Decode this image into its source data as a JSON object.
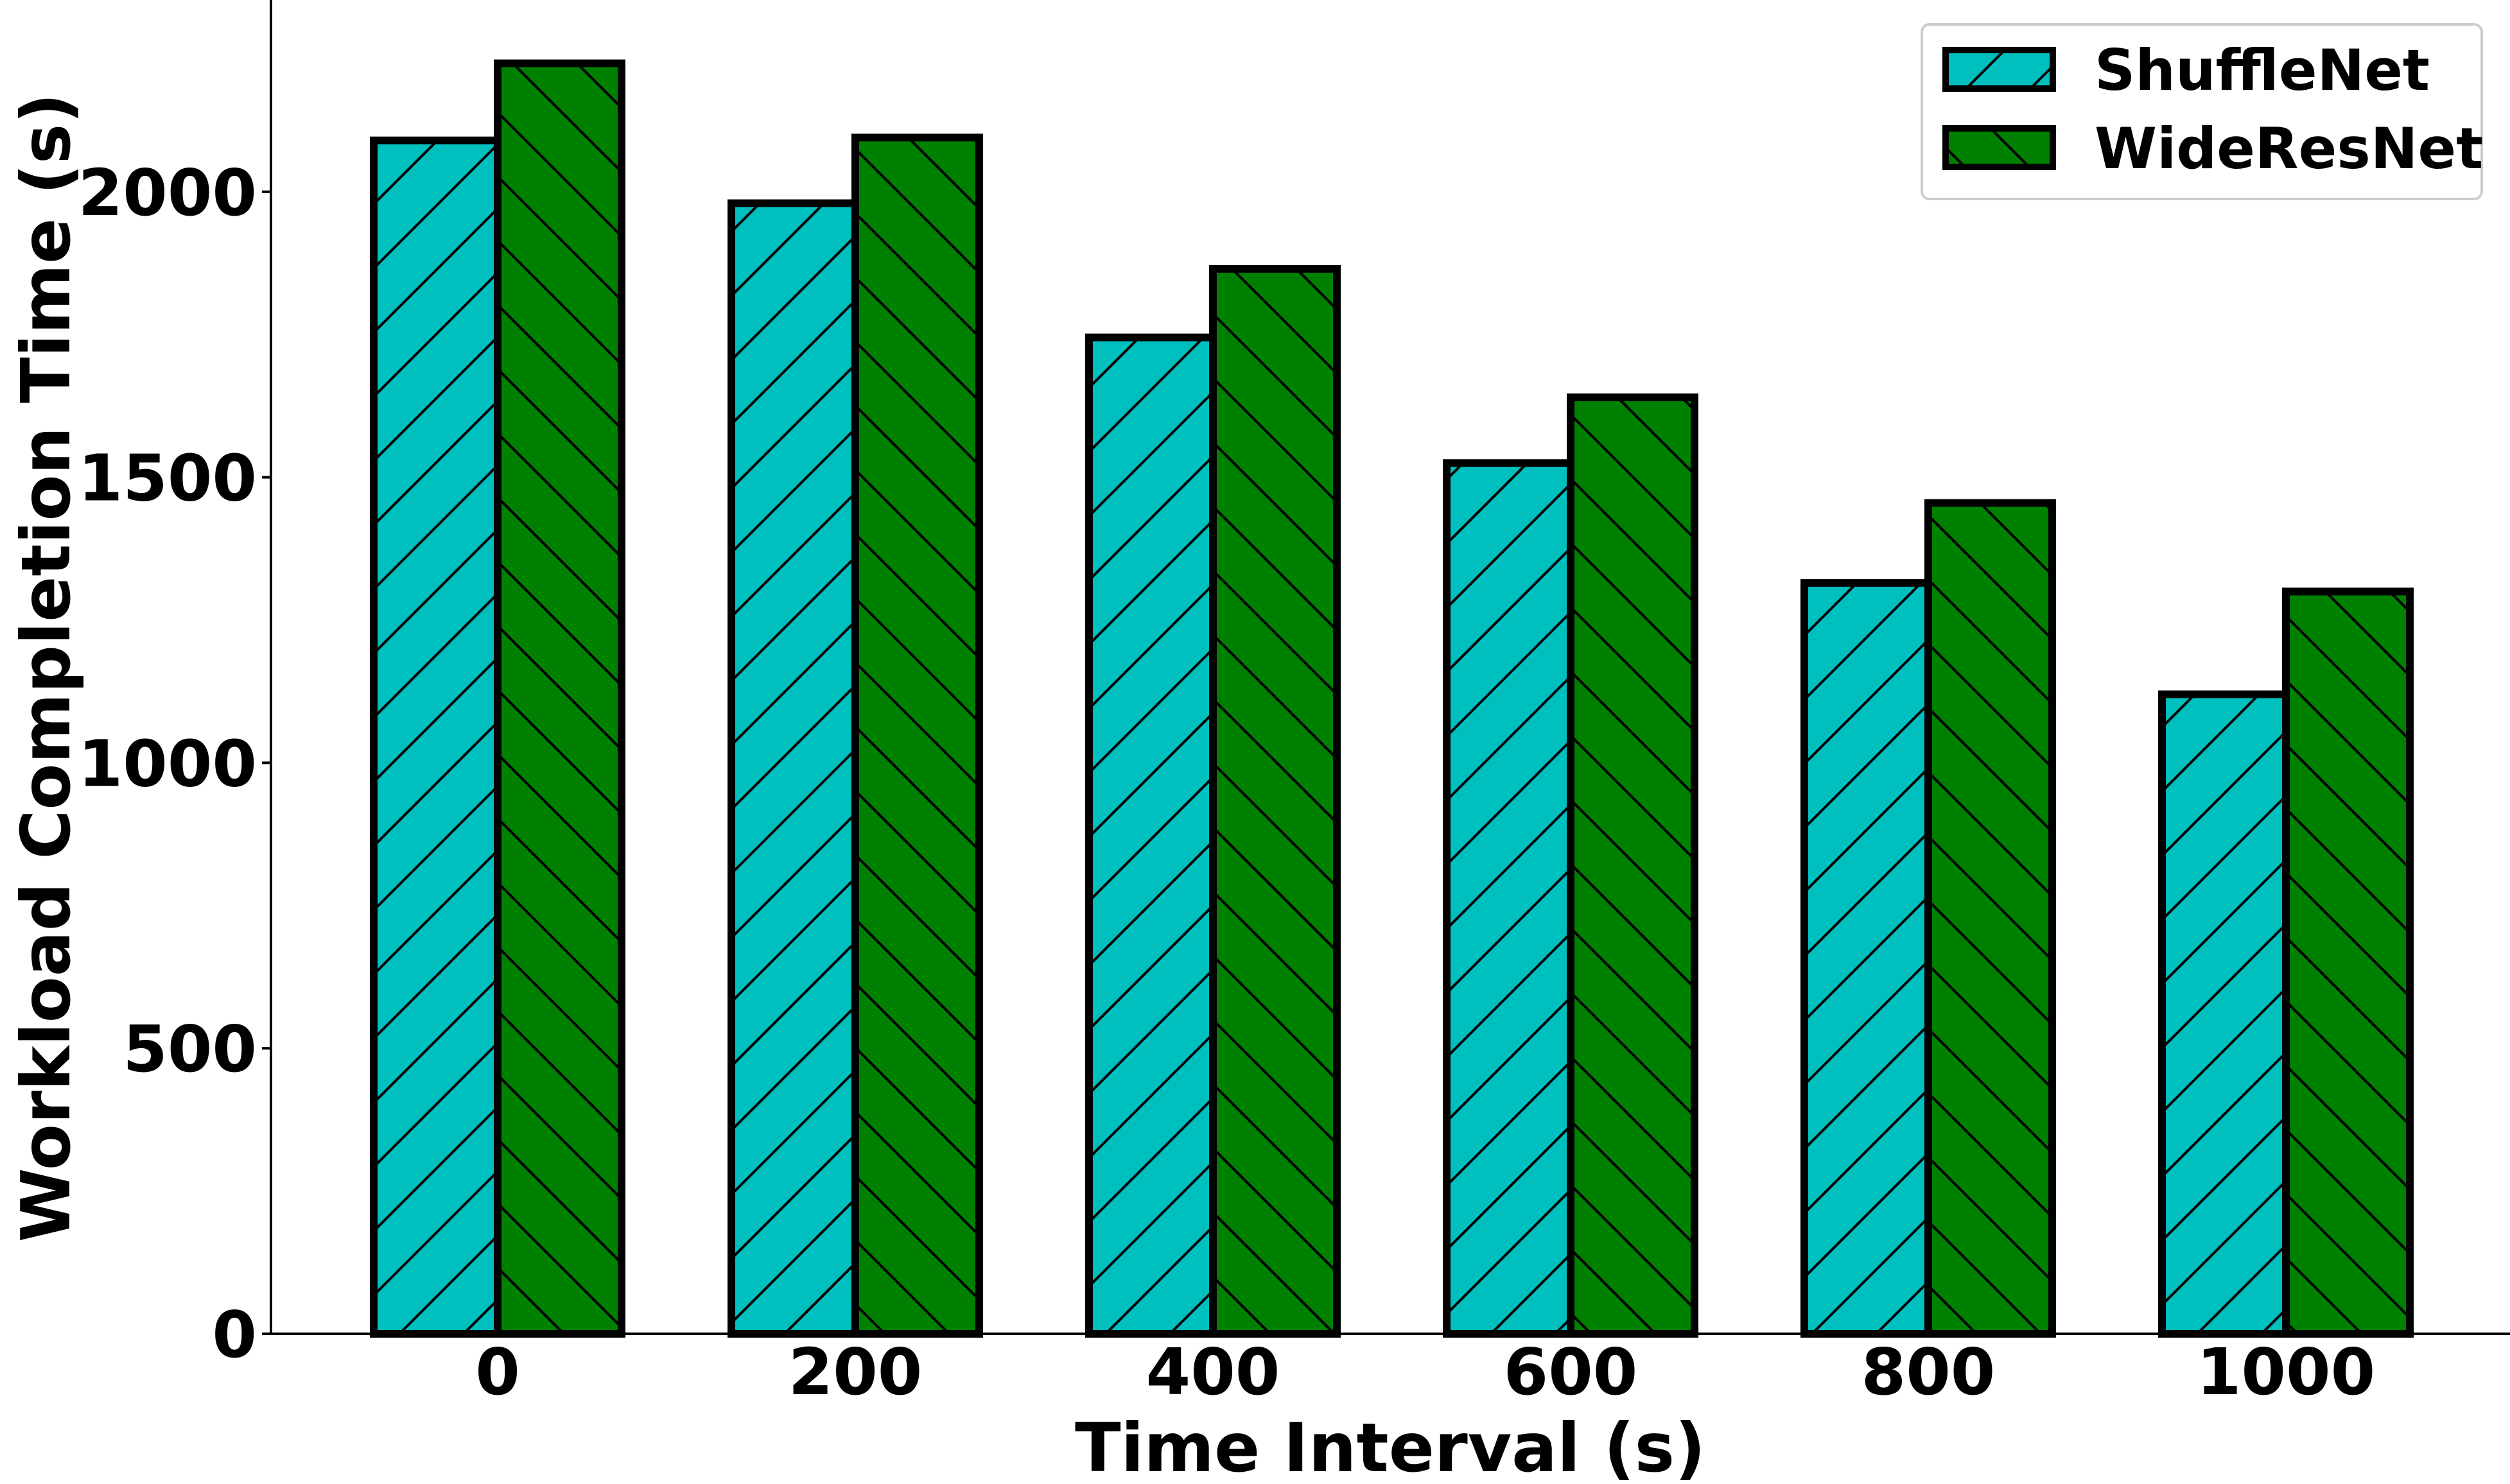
{
  "chart_data": {
    "type": "bar",
    "categories": [
      "0",
      "200",
      "400",
      "600",
      "800",
      "1000"
    ],
    "series": [
      {
        "name": "ShuffleNet",
        "values": [
          2090,
          1980,
          1745,
          1525,
          1315,
          1120
        ],
        "color": "#00bfbf",
        "hatch": "/"
      },
      {
        "name": "WideResNet",
        "values": [
          2225,
          2095,
          1865,
          1640,
          1455,
          1300
        ],
        "color": "#008000",
        "hatch": "\\"
      }
    ],
    "title": "",
    "xlabel": "Time Interval (s)",
    "ylabel": "Workload Completion Time (s)",
    "ylim": [
      0,
      2380
    ],
    "yticks": [
      0,
      500,
      1000,
      1500,
      2000
    ],
    "grid": false,
    "legend_position": "top-right"
  }
}
